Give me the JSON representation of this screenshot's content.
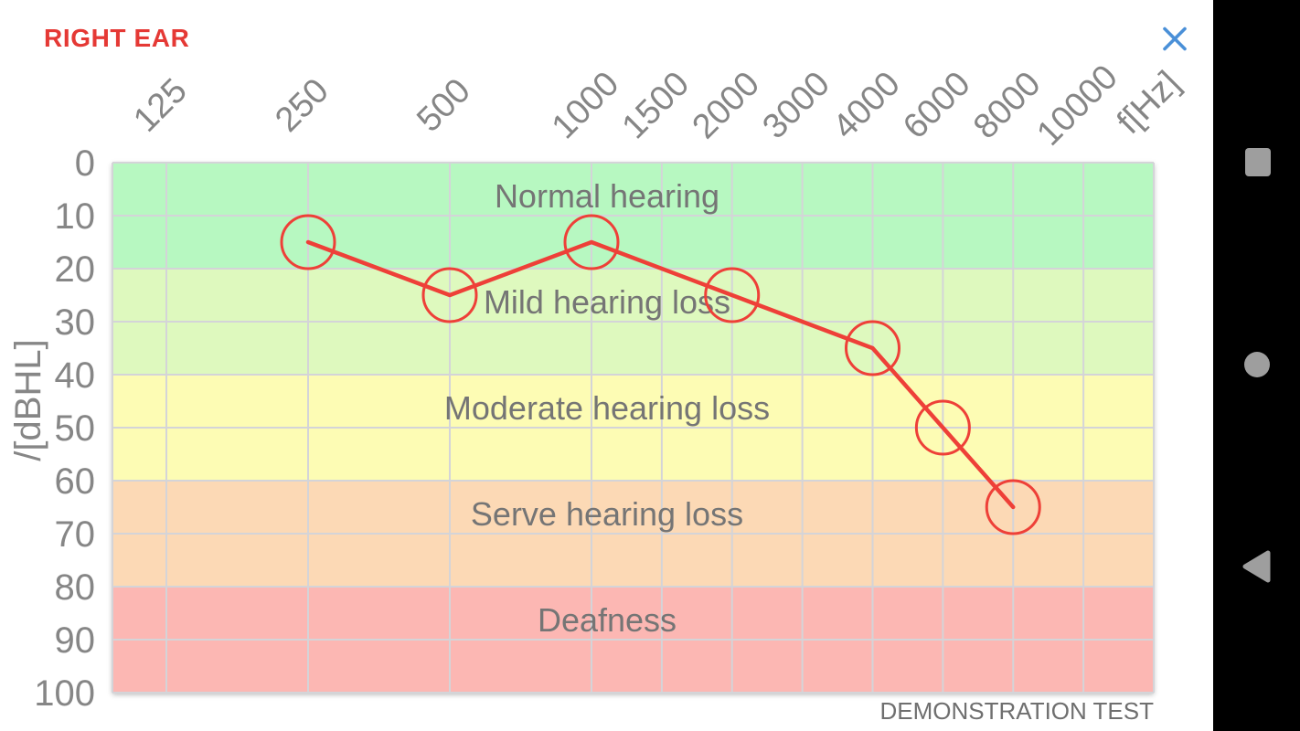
{
  "header": {
    "title": "RIGHT EAR",
    "title_color": "#e53935",
    "close_icon": "x-close",
    "close_icon_color": "#4a90d8"
  },
  "chart_data": {
    "type": "line",
    "title": "",
    "x_axis_label": "f[Hz]",
    "y_axis_label": "/[dBHL]",
    "x_ticks": [
      125,
      250,
      500,
      1000,
      1500,
      2000,
      3000,
      4000,
      6000,
      8000,
      10000
    ],
    "y_ticks": [
      0,
      10,
      20,
      30,
      40,
      50,
      60,
      70,
      80,
      90,
      100
    ],
    "ylim": [
      0,
      100
    ],
    "grid": true,
    "grid_color": "#d4d4d8",
    "tick_color": "#868686",
    "zone_label_color": "#757575",
    "zones": [
      {
        "label": "Normal hearing",
        "from": 0,
        "to": 20,
        "color": "#b7f8c1"
      },
      {
        "label": "Mild hearing loss",
        "from": 20,
        "to": 40,
        "color": "#def9be"
      },
      {
        "label": "Moderate hearing loss",
        "from": 40,
        "to": 60,
        "color": "#fdfcb4"
      },
      {
        "label": "Serve hearing loss",
        "from": 60,
        "to": 80,
        "color": "#fcd9b5"
      },
      {
        "label": "Deafness",
        "from": 80,
        "to": 100,
        "color": "#fcb7b3"
      }
    ],
    "series": [
      {
        "name": "right ear threshold",
        "color": "#ee4038",
        "marker": "circle",
        "points": [
          {
            "freq": 250,
            "db": 15
          },
          {
            "freq": 500,
            "db": 25
          },
          {
            "freq": 1000,
            "db": 15
          },
          {
            "freq": 2000,
            "db": 25
          },
          {
            "freq": 4000,
            "db": 35
          },
          {
            "freq": 6000,
            "db": 50
          },
          {
            "freq": 8000,
            "db": 65
          }
        ]
      }
    ],
    "watermark": "DEMONSTRATION TEST",
    "watermark_color": "#6f6f6f"
  },
  "nav_bar": {
    "background": "#000000",
    "icon_color": "#9e9e9e",
    "buttons": [
      {
        "name": "recents",
        "icon": "square-icon"
      },
      {
        "name": "home",
        "icon": "circle-icon"
      },
      {
        "name": "back",
        "icon": "triangle-left-icon"
      }
    ]
  }
}
